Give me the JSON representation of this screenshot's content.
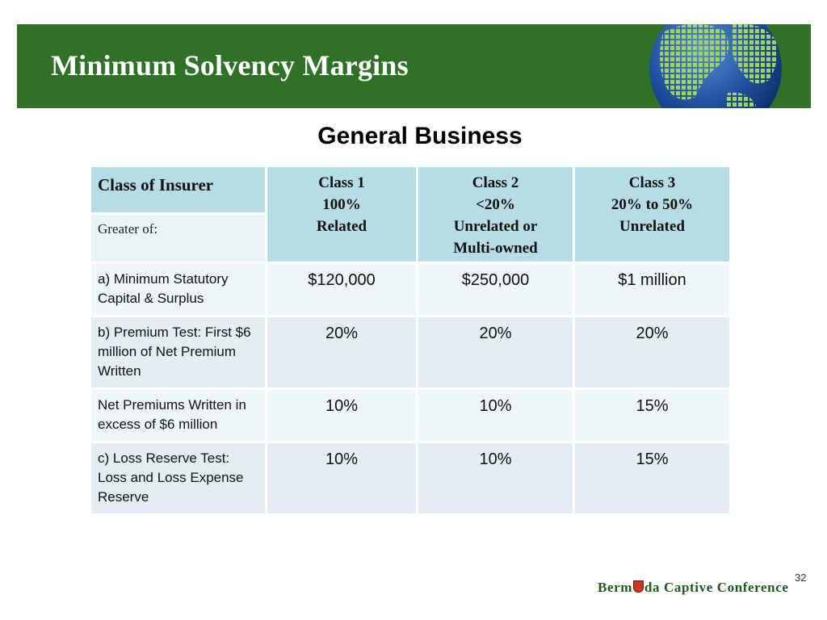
{
  "slide": {
    "title": "Minimum Solvency Margins",
    "subtitle": "General Business",
    "page_number": "32"
  },
  "footer": {
    "logo_text_a": "Berm",
    "logo_text_b": "da Captive Conference"
  },
  "colors": {
    "banner": "#2e7127",
    "header_cell": "#b7dde4",
    "row_light": "#eef6f8",
    "row_alt": "#e2eef1"
  },
  "table": {
    "corner_label": "Class of Insurer",
    "sub_label": "Greater of:",
    "columns": [
      [
        "Class 1",
        "100%",
        "Related"
      ],
      [
        "Class 2",
        "<20%",
        "Unrelated or",
        "Multi-owned"
      ],
      [
        "Class 3",
        "20% to 50%",
        "Unrelated"
      ]
    ],
    "rows": [
      {
        "label": "a) Minimum Statutory Capital & Surplus",
        "values": [
          "$120,000",
          "$250,000",
          "$1 million"
        ]
      },
      {
        "label": "b) Premium Test: First $6 million of Net Premium Written",
        "values": [
          "20%",
          "20%",
          "20%"
        ]
      },
      {
        "label": "Net Premiums Written in excess of $6 million",
        "values": [
          "10%",
          "10%",
          "15%"
        ]
      },
      {
        "label": "c) Loss Reserve Test: Loss and Loss Expense Reserve",
        "values": [
          "10%",
          "10%",
          "15%"
        ]
      }
    ]
  }
}
